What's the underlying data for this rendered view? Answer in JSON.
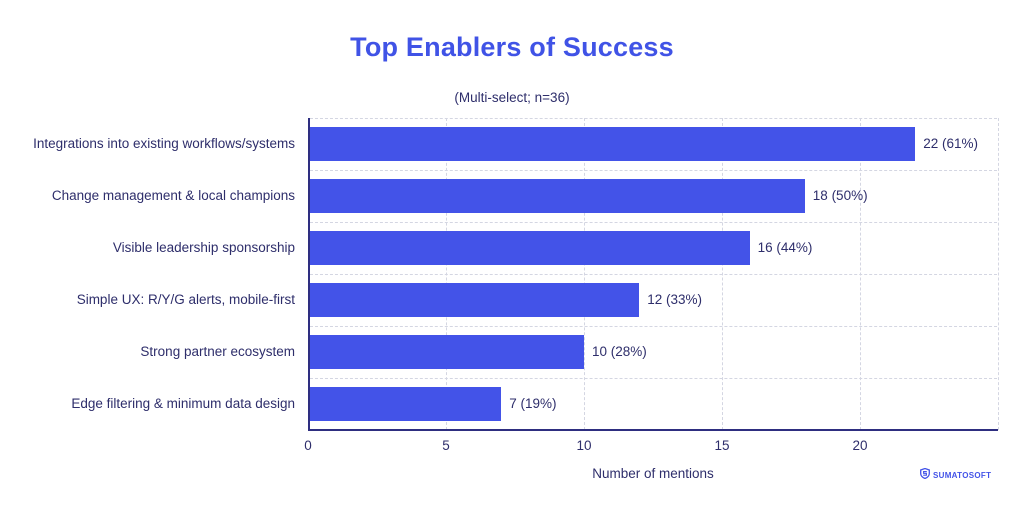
{
  "title": "Top Enablers of Success",
  "subtitle": "(Multi-select; n=36)",
  "xlabel": "Number of mentions",
  "logo": {
    "text": "SUMATOSOFT",
    "icon": "sumatosoft-shield-icon"
  },
  "colors": {
    "bar": "#4353e8",
    "title": "#4053e6",
    "text": "#2e2e6b",
    "axis": "#2e2e80",
    "grid": "#d4d6e2"
  },
  "x_ticks": [
    "0",
    "5",
    "10",
    "15",
    "20"
  ],
  "bars": [
    {
      "category": "Integrations into existing workflows/systems",
      "value": 22,
      "label": "22 (61%)"
    },
    {
      "category": "Change management & local champions",
      "value": 18,
      "label": "18 (50%)"
    },
    {
      "category": "Visible leadership sponsorship",
      "value": 16,
      "label": "16 (44%)"
    },
    {
      "category": "Simple UX: R/Y/G alerts, mobile-first",
      "value": 12,
      "label": "12 (33%)"
    },
    {
      "category": "Strong partner ecosystem",
      "value": 10,
      "label": "10 (28%)"
    },
    {
      "category": "Edge filtering & minimum data design",
      "value": 7,
      "label": "7 (19%)"
    }
  ],
  "chart_data": {
    "type": "bar",
    "orientation": "horizontal",
    "title": "Top Enablers of Success",
    "subtitle": "(Multi-select; n=36)",
    "categories": [
      "Integrations into existing workflows/systems",
      "Change management & local champions",
      "Visible leadership sponsorship",
      "Simple UX: R/Y/G alerts, mobile-first",
      "Strong partner ecosystem",
      "Edge filtering & minimum data design"
    ],
    "values": [
      22,
      18,
      16,
      12,
      10,
      7
    ],
    "percentages": [
      61,
      50,
      44,
      33,
      28,
      19
    ],
    "data_labels": [
      "22 (61%)",
      "18 (50%)",
      "16 (44%)",
      "12 (33%)",
      "10 (28%)",
      "7 (19%)"
    ],
    "xlabel": "Number of mentions",
    "ylabel": "",
    "xlim": [
      0,
      25
    ],
    "x_ticks": [
      0,
      5,
      10,
      15,
      20
    ],
    "grid": true,
    "legend": null
  }
}
